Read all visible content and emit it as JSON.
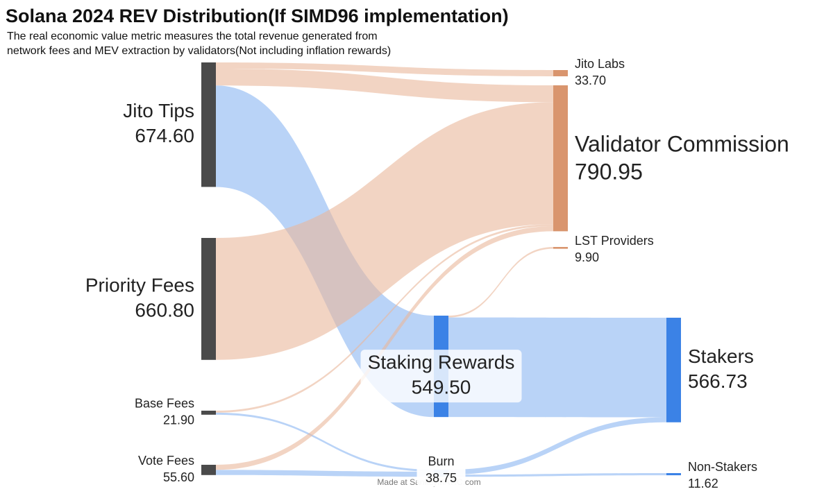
{
  "chart_data": {
    "type": "sankey",
    "title": "Solana 2024 REV Distribution(If SIMD96 implementation)",
    "subtitle": [
      "The real economic value metric measures the total revenue generated from",
      "network fees and MEV extraction by validators(Not including inflation rewards)"
    ],
    "watermark": "Made at SankeyMATIC.com",
    "nodes": [
      {
        "name": "Jito Tips",
        "value": 674.6,
        "value_label": "674.60",
        "color": "#4a4a4a"
      },
      {
        "name": "Priority Fees",
        "value": 660.8,
        "value_label": "660.80",
        "color": "#4a4a4a"
      },
      {
        "name": "Base Fees",
        "value": 21.9,
        "value_label": "21.90",
        "color": "#4a4a4a"
      },
      {
        "name": "Vote Fees",
        "value": 55.6,
        "value_label": "55.60",
        "color": "#4a4a4a"
      },
      {
        "name": "Staking Rewards",
        "value": 549.5,
        "value_label": "549.50",
        "color": "#3b82e6"
      },
      {
        "name": "Burn",
        "value": 38.75,
        "value_label": "38.75",
        "color": "#3b82e6"
      },
      {
        "name": "Jito Labs",
        "value": 33.7,
        "value_label": "33.70",
        "color": "#d9956e"
      },
      {
        "name": "Validator Commission",
        "value": 790.95,
        "value_label": "790.95",
        "color": "#d9956e"
      },
      {
        "name": "LST Providers",
        "value": 9.9,
        "value_label": "9.90",
        "color": "#d9956e"
      },
      {
        "name": "Stakers",
        "value": 566.73,
        "value_label": "566.73",
        "color": "#3b82e6"
      },
      {
        "name": "Non-Stakers",
        "value": 11.62,
        "value_label": "11.62",
        "color": "#3b82e6"
      }
    ],
    "links": [
      {
        "source": 0,
        "target": 6,
        "value": 33.7,
        "color": "#e9b79b"
      },
      {
        "source": 0,
        "target": 7,
        "value": 91.4,
        "color": "#e9b79b"
      },
      {
        "source": 0,
        "target": 4,
        "value": 549.5,
        "color": "#8ab6f2"
      },
      {
        "source": 1,
        "target": 7,
        "value": 660.8,
        "color": "#e9b79b"
      },
      {
        "source": 2,
        "target": 7,
        "value": 10.95,
        "color": "#e9b79b"
      },
      {
        "source": 2,
        "target": 5,
        "value": 10.95,
        "color": "#8ab6f2"
      },
      {
        "source": 3,
        "target": 7,
        "value": 27.8,
        "color": "#e9b79b"
      },
      {
        "source": 3,
        "target": 5,
        "value": 27.8,
        "color": "#8ab6f2"
      },
      {
        "source": 4,
        "target": 8,
        "value": 9.9,
        "color": "#e9b79b"
      },
      {
        "source": 4,
        "target": 9,
        "value": 539.6,
        "color": "#8ab6f2"
      },
      {
        "source": 5,
        "target": 9,
        "value": 27.13,
        "color": "#8ab6f2"
      },
      {
        "source": 5,
        "target": 10,
        "value": 11.62,
        "color": "#8ab6f2"
      }
    ]
  }
}
